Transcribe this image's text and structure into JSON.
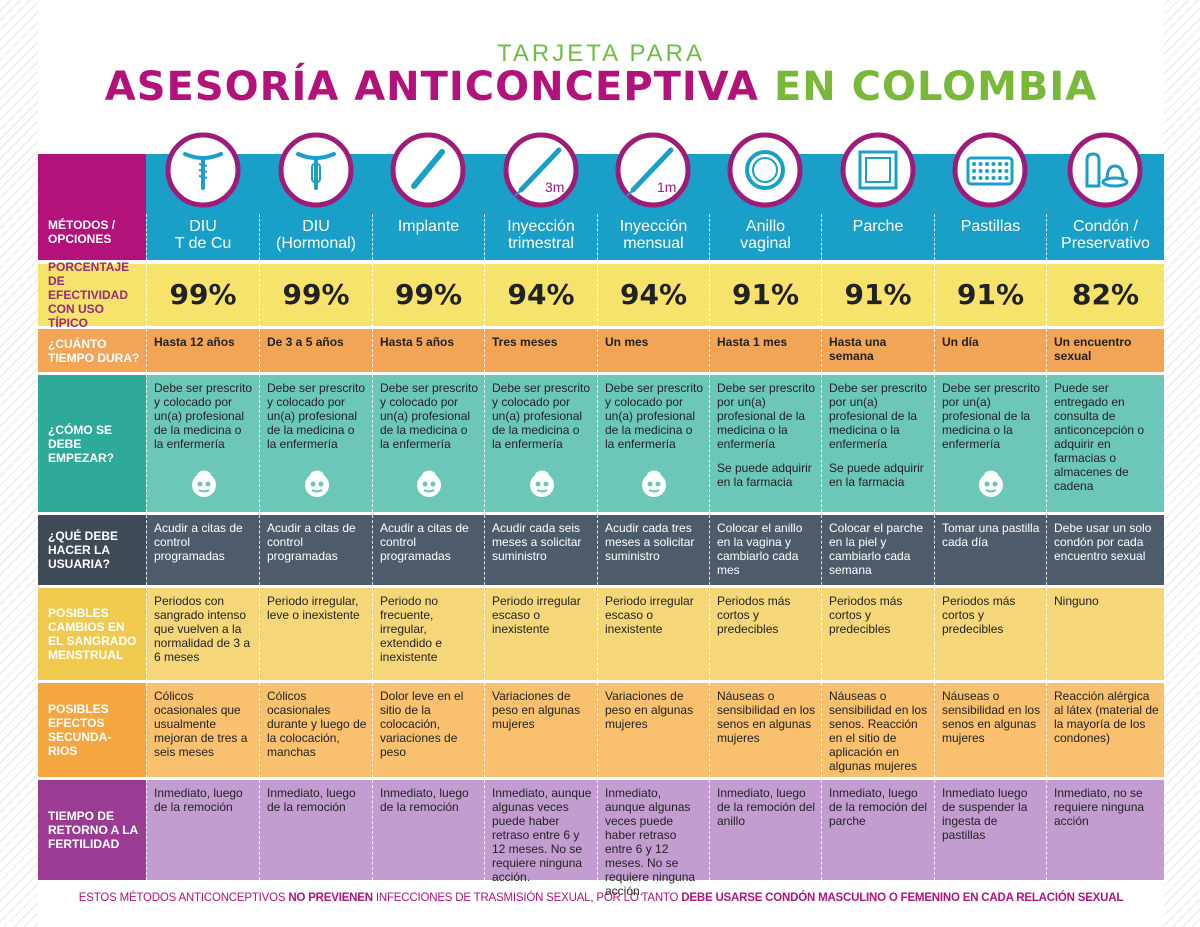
{
  "title_top": "TARJETA PARA",
  "title_main_part1": "ASESORÍA ANTICONCEPTIVA",
  "title_main_part2": "EN COLOMBIA",
  "colors": {
    "magenta": "#b3127a",
    "green": "#7ab83a",
    "blue": "#1a9fc9",
    "yellow": "#f6e36c",
    "orange": "#f2a557",
    "teal": "#6cc7b8",
    "slate": "#4e5b6a",
    "gold": "#f5d77a",
    "peach": "#f8c06f",
    "purple": "#c39dd0"
  },
  "methods_label": "MÉTODOS / OPCIONES",
  "methods": [
    {
      "name": "DIU\nT de Cu",
      "icon": "iud-copper-icon"
    },
    {
      "name": "DIU\n(Hormonal)",
      "icon": "iud-hormonal-icon"
    },
    {
      "name": "Implante",
      "icon": "implant-icon"
    },
    {
      "name": "Inyección\ntrimestral",
      "icon": "syringe-3m-icon",
      "badge": "3m"
    },
    {
      "name": "Inyección\nmensual",
      "icon": "syringe-1m-icon",
      "badge": "1m"
    },
    {
      "name": "Anillo\nvaginal",
      "icon": "ring-icon"
    },
    {
      "name": "Parche",
      "icon": "patch-icon"
    },
    {
      "name": "Pastillas",
      "icon": "pills-icon"
    },
    {
      "name": "Condón /\nPreservativo",
      "icon": "condom-icon"
    }
  ],
  "rows": [
    {
      "key": "effectiveness",
      "label": "PORCENTAJE DE EFECTIVIDAD CON USO TÍPICO",
      "values": [
        "99%",
        "99%",
        "99%",
        "94%",
        "94%",
        "91%",
        "91%",
        "91%",
        "82%"
      ]
    },
    {
      "key": "duration",
      "label": "¿CUÁNTO TIEMPO DURA?",
      "values": [
        "Hasta 12 años",
        "De 3 a 5 años",
        "Hasta 5 años",
        "Tres meses",
        "Un mes",
        "Hasta 1 mes",
        "Hasta una semana",
        "Un día",
        "Un encuentro sexual"
      ]
    },
    {
      "key": "start",
      "label": "¿CÓMO SE DEBE EMPEZAR?",
      "values": [
        "Debe ser prescrito y colocado por un(a) profesional de la medicina o la enfermería",
        "Debe ser prescrito y colocado por un(a) profesional de la medicina o la enfermería",
        "Debe ser prescrito y colocado por un(a) profesional de la medicina o la enfermería",
        "Debe ser prescrito y colocado por un(a) profesional de la medicina o la enfermería",
        "Debe ser prescrito y colocado por un(a) profesional de la medicina o la enfermería",
        "Debe ser prescrito por un(a) profesional de la medicina o la enfermería",
        "Debe ser prescrito por un(a) profesional de la medicina o la enfermería",
        "Debe ser prescrito por un(a) profesional de la medicina o la enfermería",
        "Puede ser entregado en consulta de anticoncepción o adquirir en farmacias o almacenes de cadena"
      ],
      "extras": [
        "",
        "",
        "",
        "",
        "",
        "Se puede adquirir en la farmacia",
        "Se puede adquirir en la farmacia",
        "",
        ""
      ]
    },
    {
      "key": "user_action",
      "label": "¿QUÉ DEBE HACER LA USUARIA?",
      "values": [
        "Acudir a citas de control programadas",
        "Acudir a citas de control programadas",
        "Acudir a citas de control programadas",
        "Acudir cada seis meses a solicitar suministro",
        "Acudir cada tres meses a solicitar suministro",
        "Colocar el anillo en la vagina y cambiarlo cada mes",
        "Colocar el parche en la piel y cambiarlo cada semana",
        "Tomar una pastilla cada día",
        "Debe usar un solo condón por cada encuentro sexual"
      ]
    },
    {
      "key": "bleeding",
      "label": "POSIBLES CAMBIOS EN EL SANGRADO MENSTRUAL",
      "values": [
        "Periodos con sangrado intenso que vuelven a la normalidad de 3 a 6 meses",
        "Periodo irregular, leve o inexistente",
        "Periodo no frecuente, irregular, extendido e inexistente",
        "Periodo irregular escaso o inexistente",
        "Periodo irregular escaso o inexistente",
        "Periodos más cortos y predecibles",
        "Periodos más cortos y predecibles",
        "Periodos más cortos y predecibles",
        "Ninguno"
      ]
    },
    {
      "key": "side_effects",
      "label": "POSIBLES EFECTOS SECUNDA-RIOS",
      "values": [
        "Cólicos ocasionales que usualmente mejoran de tres a seis meses",
        "Cólicos ocasionales durante y luego de la colocación, manchas",
        "Dolor leve en el sitio de la colocación, variaciones de peso",
        "Variaciones de peso en algunas mujeres",
        "Variaciones de peso en algunas mujeres",
        "Náuseas o sensibilidad en los senos en algunas mujeres",
        "Náuseas o sensibilidad en los senos. Reacción en el sitio de aplicación en algunas mujeres",
        "Náuseas o sensibilidad en los senos en algunas mujeres",
        "Reacción alérgica al látex (material de la mayoría de los condones)"
      ]
    },
    {
      "key": "fertility",
      "label": "TIEMPO DE RETORNO A LA FERTILIDAD",
      "values": [
        "Inmediato, luego de la remoción",
        "Inmediato, luego de la remoción",
        "Inmediato, luego de la remoción",
        "Inmediato, aunque algunas veces puede haber retraso entre 6 y 12 meses. No se requiere ninguna acción.",
        "Inmediato, aunque algunas veces puede haber retraso entre 6 y 12 meses. No se requiere ninguna acción.",
        "Inmediato, luego de la remoción del anillo",
        "Inmediato, luego de la remoción del parche",
        "Inmediato luego de suspender la ingesta de pastillas",
        "Inmediato, no se requiere ninguna acción"
      ]
    }
  ],
  "footer": {
    "p1": "ESTOS MÉTODOS ANTICONCEPTIVOS ",
    "p2": "NO PREVIENEN",
    "p3": " INFECCIONES DE TRASMISIÓN SEXUAL, POR LO TANTO ",
    "p4": "DEBE USARSE CONDÓN MASCULINO O FEMENINO EN CADA RELACIÓN SEXUAL"
  }
}
